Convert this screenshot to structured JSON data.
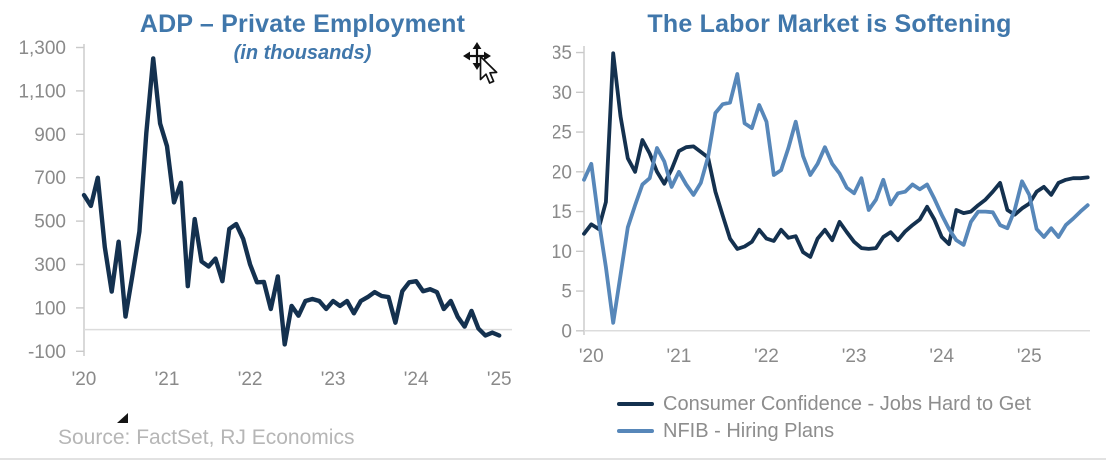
{
  "page": {
    "background": "#ffffff",
    "source_note": "Source: FactSet, RJ Economics"
  },
  "colors": {
    "title_blue": "#4077ab",
    "navy": "#14314f",
    "steel_blue": "#5787b9",
    "axis_text": "#8a8a8a",
    "legend_text": "#8d8d8d",
    "source_text": "#b6b6b6",
    "axis_line": "#c9c9c9",
    "grid_line": "#dcdcdc",
    "divider": "#e2e2e2",
    "cursor_black": "#111111"
  },
  "icons": {
    "cursor": "move-cursor-icon",
    "handle": "corner-handle-icon"
  },
  "chart_data": [
    {
      "type": "line",
      "title": "ADP – Private Employment",
      "subtitle": "(in thousands)",
      "x_range": [
        "2020-01",
        "2025-01"
      ],
      "x_tick_labels": [
        "'20",
        "'21",
        "'22",
        "'23",
        "'24",
        "'25"
      ],
      "y_ticks": [
        1300,
        1100,
        900,
        700,
        500,
        300,
        100,
        -100
      ],
      "y_tick_labels": [
        "1,300",
        "1,100",
        "900",
        "700",
        "500",
        "300",
        "100",
        "-100"
      ],
      "ylim": [
        -150,
        1320
      ],
      "grid": "zero line only",
      "legend": "none",
      "series": [
        {
          "name": "ADP private employment, monthly change (thousands)",
          "color": "#14314f",
          "values": [
            620,
            570,
            700,
            380,
            175,
            405,
            60,
            250,
            452,
            905,
            1250,
            950,
            845,
            586,
            677,
            200,
            509,
            314,
            291,
            327,
            223,
            464,
            486,
            418,
            300,
            218,
            220,
            95,
            245,
            -68,
            109,
            64,
            132,
            141,
            132,
            95,
            132,
            109,
            132,
            75,
            132,
            150,
            173,
            155,
            150,
            32,
            177,
            218,
            223,
            177,
            186,
            173,
            95,
            132,
            59,
            14,
            86,
            5,
            -27,
            -14,
            -27
          ]
        }
      ]
    },
    {
      "type": "line",
      "title": "The Labor Market is Softening",
      "subtitle": "",
      "x_range": [
        "2019-12",
        "2025-10"
      ],
      "x_tick_labels": [
        "'20",
        "'21",
        "'22",
        "'23",
        "'24",
        "'25"
      ],
      "y_ticks": [
        35,
        30,
        25,
        20,
        15,
        10,
        5,
        0
      ],
      "y_tick_labels": [
        "35",
        "30",
        "25",
        "20",
        "15",
        "10",
        "5",
        "0"
      ],
      "ylim": [
        0,
        35
      ],
      "grid": "baseline only",
      "legend": "bottom-left",
      "series": [
        {
          "name": "Consumer Confidence - Jobs Hard to Get",
          "color": "#14314f",
          "values": [
            12.2,
            13.4,
            12.8,
            16.2,
            34.9,
            27,
            21.7,
            20,
            24,
            22.3,
            20,
            18.5,
            20.3,
            22.6,
            23.1,
            23.2,
            22.5,
            21.8,
            17.5,
            14.5,
            11.6,
            10.3,
            10.6,
            11.2,
            12.7,
            11.6,
            11.3,
            12.7,
            11.7,
            11.9,
            9.9,
            9.3,
            11.6,
            12.7,
            11.4,
            13.7,
            12.4,
            11.2,
            10.4,
            10.3,
            10.4,
            11.8,
            12.4,
            11.4,
            12.5,
            13.3,
            14,
            15.6,
            14,
            11.8,
            10.9,
            15.2,
            14.8,
            15,
            15.8,
            16.5,
            17.5,
            18.6,
            15.2,
            14.6,
            15.4,
            16,
            17.5,
            18.1,
            17.1,
            18.6,
            19,
            19.2,
            19.2,
            19.3
          ]
        },
        {
          "name": "NFIB - Hiring Plans",
          "color": "#5787b9",
          "values": [
            19,
            21,
            14,
            8,
            1,
            7,
            13,
            15.8,
            18.4,
            19.2,
            23,
            21.3,
            18.1,
            20,
            18.4,
            17.1,
            18.6,
            21.9,
            27.4,
            28.5,
            28.7,
            32.3,
            26.1,
            25.5,
            28.4,
            26.3,
            19.6,
            20.2,
            23,
            26.3,
            22,
            19.6,
            21,
            23.1,
            21,
            19.8,
            18,
            17.3,
            19.2,
            15.2,
            16.5,
            19,
            15.9,
            17.3,
            17.5,
            18.4,
            17.8,
            18.4,
            16.6,
            14.6,
            12.8,
            11.4,
            10.8,
            13.7,
            15,
            15,
            14.9,
            13.3,
            12.9,
            15.2,
            18.8,
            17.1,
            12.8,
            11.8,
            12.9,
            11.8,
            13.3,
            14.1,
            15,
            15.8
          ]
        }
      ]
    }
  ]
}
